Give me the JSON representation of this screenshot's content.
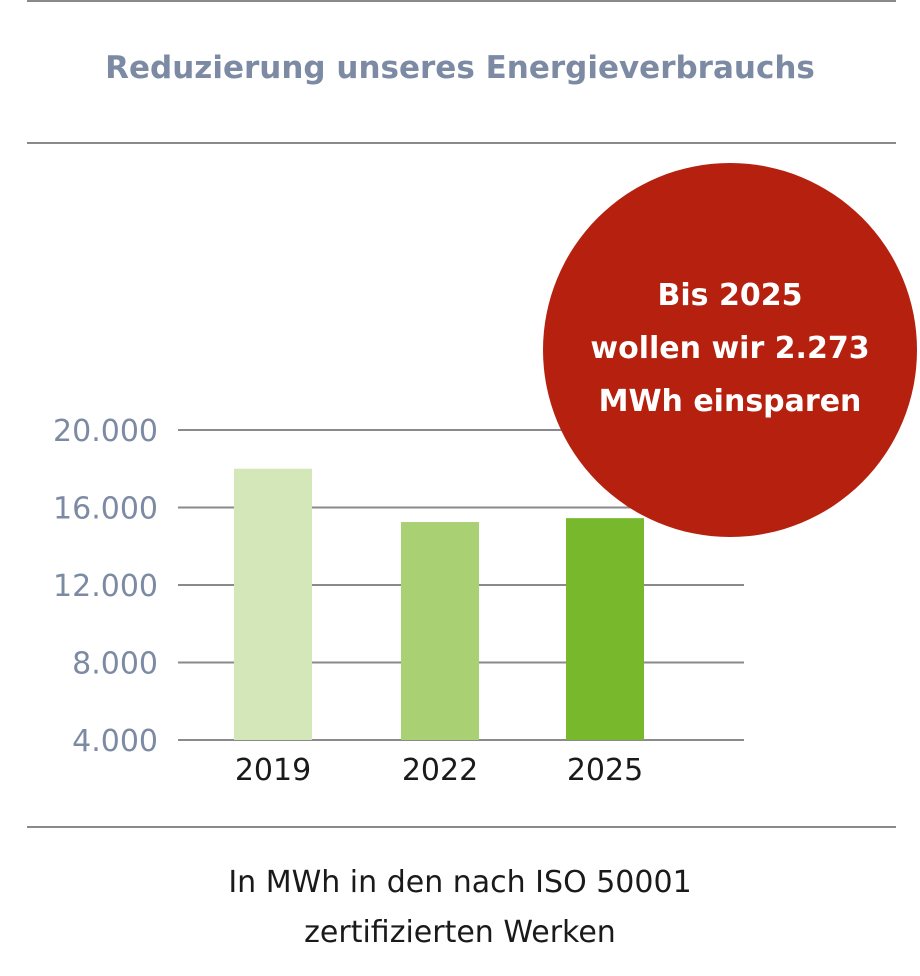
{
  "chart_data": {
    "type": "bar",
    "title": "Reduzierung unseres Energieverbrauchs",
    "categories": [
      "2019",
      "2022",
      "2025"
    ],
    "values": [
      18000,
      15250,
      15450
    ],
    "colors": [
      "#d3e7b9",
      "#a9d174",
      "#77b82c"
    ],
    "yticks": [
      "4.000",
      "8.000",
      "12.000",
      "16.000",
      "20.000"
    ],
    "ytick_values": [
      4000,
      8000,
      12000,
      16000,
      20000
    ],
    "ylim": [
      4000,
      20000
    ],
    "grid": true,
    "xlabel": "",
    "ylabel": "",
    "caption_lines": [
      "In MWh in den nach ISO 50001",
      "zertifizierten Werken"
    ],
    "annotation": {
      "lines": [
        "Bis 2025",
        "wollen wir 2.273",
        "MWh einsparen"
      ],
      "color": "#b5200f"
    }
  },
  "colors": {
    "title": "#7c8aa3",
    "tick": "#7c8aa3",
    "rule": "#8a8a8a",
    "grid": "#8a8a8a"
  }
}
